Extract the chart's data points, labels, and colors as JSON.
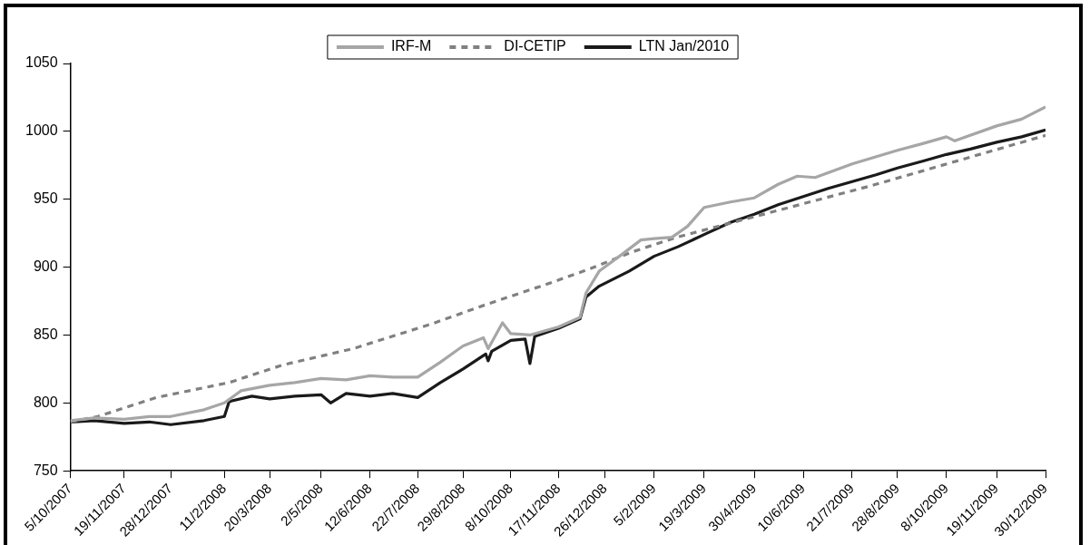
{
  "chart_data": {
    "type": "line",
    "xlim": [
      "2007-10-05",
      "2009-12-30"
    ],
    "xticks": [
      {
        "value": "2007-10-05",
        "label": "5/10/2007"
      },
      {
        "value": "2007-11-19",
        "label": "19/11/2007"
      },
      {
        "value": "2007-12-28",
        "label": "28/12/2007"
      },
      {
        "value": "2008-02-11",
        "label": "11/2/2008"
      },
      {
        "value": "2008-03-20",
        "label": "20/3/2008"
      },
      {
        "value": "2008-05-02",
        "label": "2/5/2008"
      },
      {
        "value": "2008-06-12",
        "label": "12/6/2008"
      },
      {
        "value": "2008-07-22",
        "label": "22/7/2008"
      },
      {
        "value": "2008-08-29",
        "label": "29/8/2008"
      },
      {
        "value": "2008-10-08",
        "label": "8/10/2008"
      },
      {
        "value": "2008-11-17",
        "label": "17/11/2008"
      },
      {
        "value": "2008-12-26",
        "label": "26/12/2008"
      },
      {
        "value": "2009-02-05",
        "label": "5/2/2009"
      },
      {
        "value": "2009-03-19",
        "label": "19/3/2009"
      },
      {
        "value": "2009-04-30",
        "label": "30/4/2009"
      },
      {
        "value": "2009-06-10",
        "label": "10/6/2009"
      },
      {
        "value": "2009-07-21",
        "label": "21/7/2009"
      },
      {
        "value": "2009-08-28",
        "label": "28/8/2009"
      },
      {
        "value": "2009-10-08",
        "label": "8/10/2009"
      },
      {
        "value": "2009-11-19",
        "label": "19/11/2009"
      },
      {
        "value": "2009-12-30",
        "label": "30/12/2009"
      }
    ],
    "ylim": [
      750,
      1050
    ],
    "yticks": [
      750,
      800,
      850,
      900,
      950,
      1000,
      1050
    ],
    "grid": false,
    "legend": "top",
    "marker": "none",
    "series": [
      {
        "name": "IRF-M",
        "color": "#a6a6a6",
        "line_style": "solid",
        "x": [
          "2007-10-05",
          "2007-10-25",
          "2007-11-19",
          "2007-12-10",
          "2007-12-28",
          "2008-01-25",
          "2008-02-11",
          "2008-02-25",
          "2008-03-20",
          "2008-04-10",
          "2008-05-02",
          "2008-05-23",
          "2008-06-12",
          "2008-07-01",
          "2008-07-22",
          "2008-08-10",
          "2008-08-29",
          "2008-09-15",
          "2008-09-19",
          "2008-10-01",
          "2008-10-08",
          "2008-10-24",
          "2008-11-17",
          "2008-12-05",
          "2008-12-10",
          "2008-12-21",
          "2009-01-10",
          "2009-01-25",
          "2009-02-05",
          "2009-02-20",
          "2009-03-05",
          "2009-03-19",
          "2009-04-10",
          "2009-04-30",
          "2009-05-20",
          "2009-06-05",
          "2009-06-20",
          "2009-07-21",
          "2009-08-28",
          "2009-09-18",
          "2009-10-08",
          "2009-10-15",
          "2009-11-19",
          "2009-12-10",
          "2009-12-30"
        ],
        "values": [
          787,
          789,
          788,
          790,
          790,
          795,
          800,
          809,
          813,
          815,
          818,
          817,
          820,
          819,
          819,
          830,
          842,
          848,
          840,
          859,
          851,
          850,
          856,
          863,
          881,
          897,
          910,
          920,
          921,
          922,
          930,
          944,
          948,
          951,
          961,
          967,
          966,
          976,
          986,
          991,
          996,
          993,
          1004,
          1009,
          1018
        ]
      },
      {
        "name": "DI-CETIP",
        "color": "#808080",
        "line_style": "dashed",
        "x": [
          "2007-10-05",
          "2007-10-28",
          "2007-12-16",
          "2008-02-15",
          "2008-03-31",
          "2008-05-29",
          "2008-08-02",
          "2008-09-19",
          "2008-11-09",
          "2008-12-14",
          "2009-01-17",
          "2009-02-24",
          "2009-08-06",
          "2009-12-30"
        ],
        "values": [
          786,
          790,
          804,
          815,
          828,
          840,
          858,
          873,
          888,
          899,
          911,
          922,
          960,
          997
        ]
      },
      {
        "name": "LTN Jan/2010",
        "color": "#1a1a1a",
        "line_style": "solid",
        "x": [
          "2007-10-05",
          "2007-10-25",
          "2007-11-19",
          "2007-12-10",
          "2007-12-28",
          "2008-01-25",
          "2008-02-11",
          "2008-02-15",
          "2008-03-05",
          "2008-03-20",
          "2008-04-10",
          "2008-05-02",
          "2008-05-10",
          "2008-05-23",
          "2008-06-12",
          "2008-07-01",
          "2008-07-22",
          "2008-08-10",
          "2008-08-29",
          "2008-09-17",
          "2008-09-19",
          "2008-09-22",
          "2008-10-08",
          "2008-10-20",
          "2008-10-24",
          "2008-10-28",
          "2008-11-17",
          "2008-12-05",
          "2008-12-10",
          "2008-12-21",
          "2009-01-15",
          "2009-02-05",
          "2009-02-25",
          "2009-03-19",
          "2009-04-10",
          "2009-04-30",
          "2009-05-20",
          "2009-06-10",
          "2009-07-01",
          "2009-07-21",
          "2009-08-10",
          "2009-08-28",
          "2009-09-18",
          "2009-10-08",
          "2009-10-28",
          "2009-11-19",
          "2009-12-10",
          "2009-12-30"
        ],
        "values": [
          786,
          787,
          785,
          786,
          784,
          787,
          790,
          801,
          805,
          803,
          805,
          806,
          800,
          807,
          805,
          807,
          804,
          815,
          825,
          836,
          831,
          838,
          846,
          847,
          829,
          849,
          855,
          862,
          878,
          886,
          897,
          908,
          915,
          924,
          933,
          939,
          946,
          952,
          958,
          963,
          968,
          973,
          978,
          983,
          987,
          992,
          996,
          1001
        ]
      }
    ]
  }
}
